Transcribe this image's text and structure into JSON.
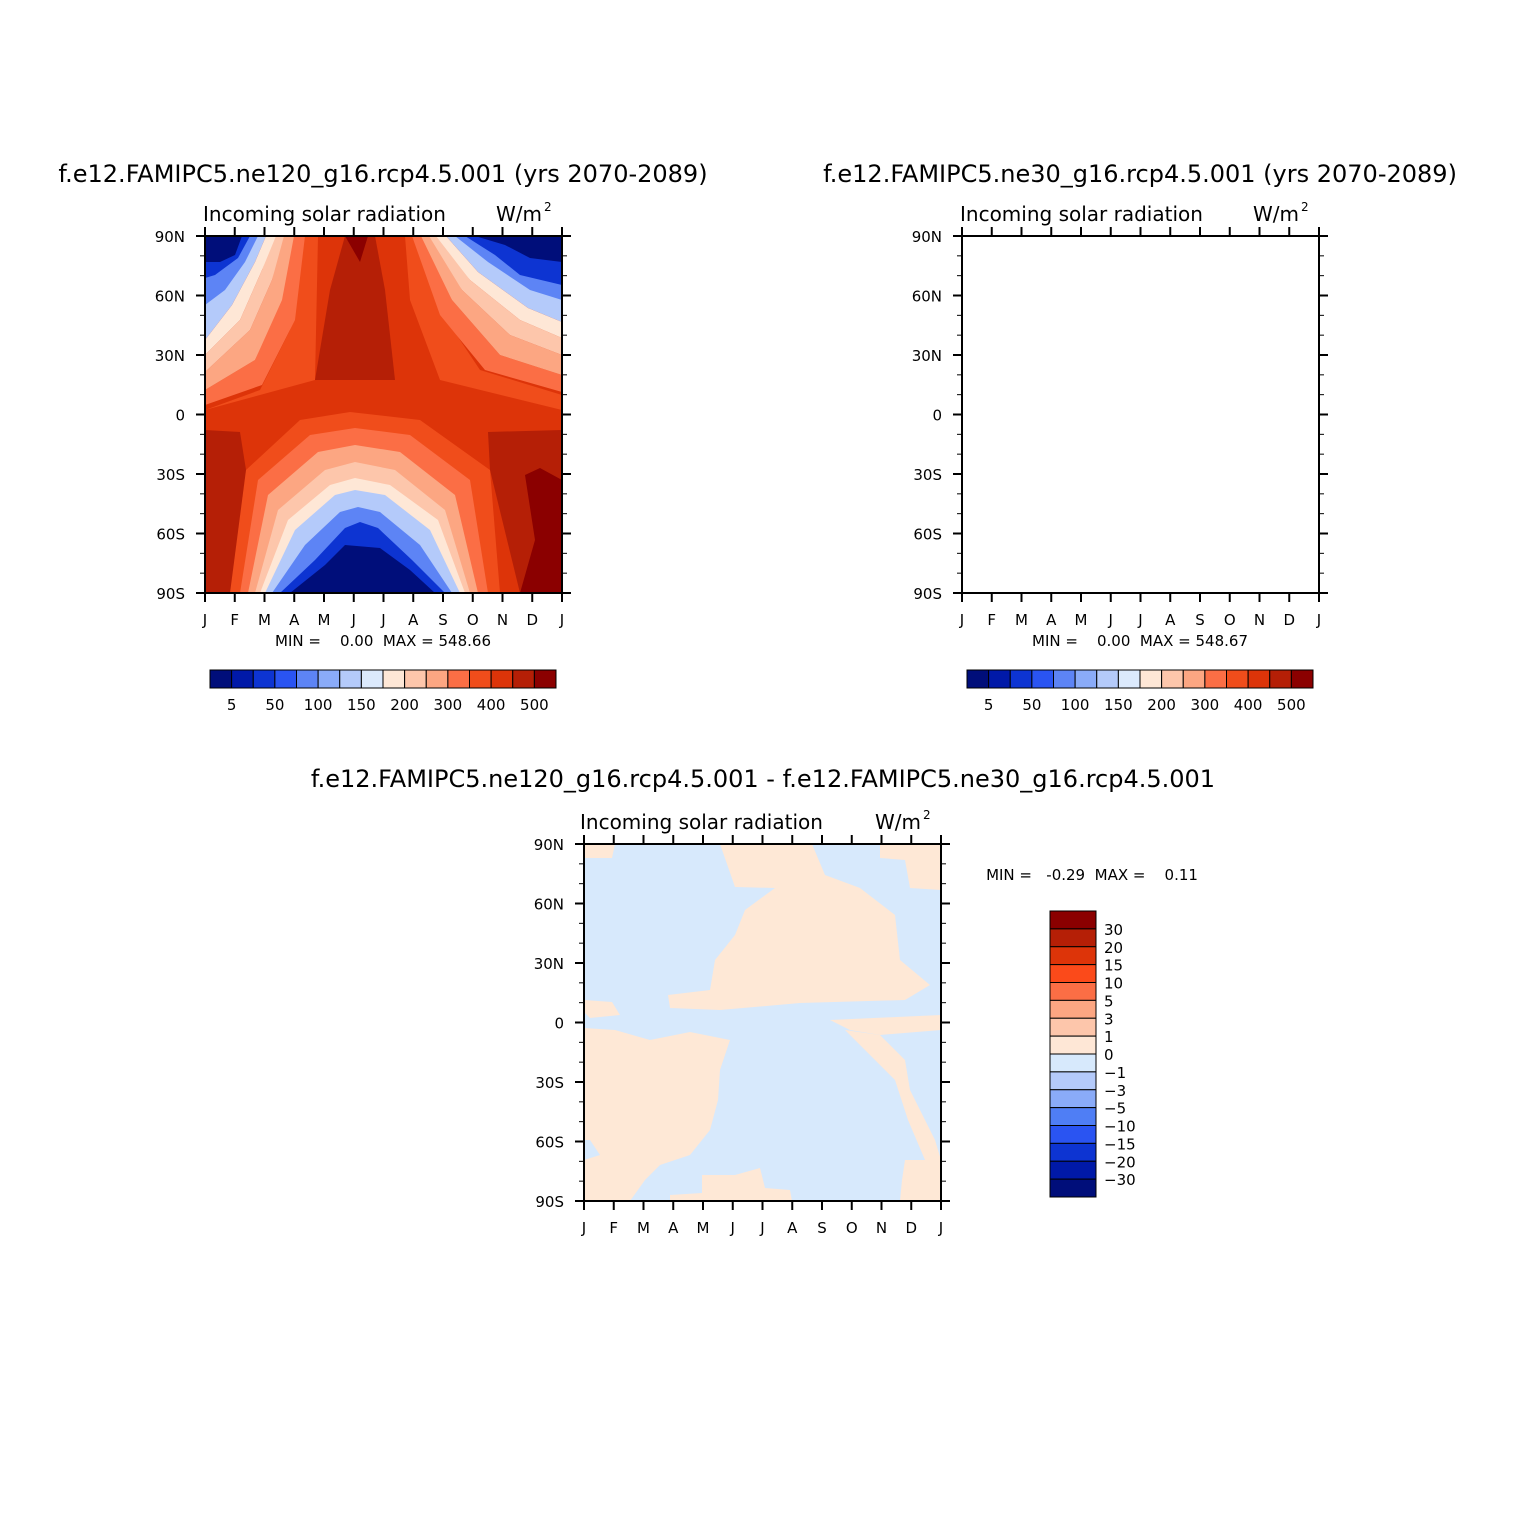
{
  "chart_data": [
    {
      "type": "heatmap",
      "title": "f.e12.FAMIPC5.ne120_g16.rcp4.5.001 (yrs 2070-2089)",
      "subtitle_left": "Incoming solar radiation",
      "units": "W/m",
      "units_exp": "2",
      "x_ticks": [
        "J",
        "F",
        "M",
        "A",
        "M",
        "J",
        "J",
        "A",
        "S",
        "O",
        "N",
        "D",
        "J"
      ],
      "y_ticks": [
        "90N",
        "60N",
        "30N",
        "0",
        "30S",
        "60S",
        "90S"
      ],
      "stats": "MIN =    0.00  MAX = 548.66",
      "min": 0.0,
      "max": 548.66,
      "levels": [
        "5",
        "50",
        "100",
        "150",
        "200",
        "300",
        "400",
        "500"
      ],
      "colors": [
        "#000e7a",
        "#0019a8",
        "#0d34d2",
        "#2a54f2",
        "#5d84f5",
        "#8aabf8",
        "#b4cafa",
        "#dbe9fc",
        "#fee7d6",
        "#fdc6ab",
        "#fca682",
        "#fb6e45",
        "#f04d1b",
        "#dd3409",
        "#b51f06",
        "#8b0000"
      ]
    },
    {
      "type": "heatmap",
      "title": "f.e12.FAMIPC5.ne30_g16.rcp4.5.001 (yrs 2070-2089)",
      "subtitle_left": "Incoming solar radiation",
      "units": "W/m",
      "units_exp": "2",
      "x_ticks": [
        "J",
        "F",
        "M",
        "A",
        "M",
        "J",
        "J",
        "A",
        "S",
        "O",
        "N",
        "D",
        "J"
      ],
      "y_ticks": [
        "90N",
        "60N",
        "30N",
        "0",
        "30S",
        "60S",
        "90S"
      ],
      "stats": "MIN =    0.00  MAX = 548.67",
      "min": 0.0,
      "max": 548.67,
      "levels": [
        "5",
        "50",
        "100",
        "150",
        "200",
        "300",
        "400",
        "500"
      ],
      "colors": [
        "#000e7a",
        "#0019a8",
        "#0d34d2",
        "#2a54f2",
        "#5d84f5",
        "#8aabf8",
        "#b4cafa",
        "#dbe9fc",
        "#fee7d6",
        "#fdc6ab",
        "#fca682",
        "#fb6e45",
        "#f04d1b",
        "#dd3409",
        "#b51f06",
        "#8b0000"
      ]
    },
    {
      "type": "heatmap",
      "title": "f.e12.FAMIPC5.ne120_g16.rcp4.5.001 - f.e12.FAMIPC5.ne30_g16.rcp4.5.001",
      "subtitle_left": "Incoming solar radiation",
      "units": "W/m",
      "units_exp": "2",
      "x_ticks": [
        "J",
        "F",
        "M",
        "A",
        "M",
        "J",
        "J",
        "A",
        "S",
        "O",
        "N",
        "D",
        "J"
      ],
      "y_ticks": [
        "90N",
        "60N",
        "30N",
        "0",
        "30S",
        "60S",
        "90S"
      ],
      "stats": "MIN =   -0.29  MAX =    0.11",
      "min": -0.29,
      "max": 0.11,
      "levels": [
        "30",
        "20",
        "15",
        "10",
        "5",
        "3",
        "1",
        "0",
        "-1",
        "-3",
        "-5",
        "-10",
        "-15",
        "-20",
        "-30"
      ],
      "colors": [
        "#8b0000",
        "#b51f06",
        "#dd3409",
        "#fb4a1a",
        "#fb6e45",
        "#fca682",
        "#fdc6ab",
        "#fee7d6",
        "#d7e9fc",
        "#b4cafa",
        "#8aabf8",
        "#4f7ef5",
        "#2a54f2",
        "#0d34d2",
        "#0019a8",
        "#000e7a"
      ],
      "positive_color": "#fee8d6",
      "negative_color": "#d7e9fc"
    }
  ]
}
